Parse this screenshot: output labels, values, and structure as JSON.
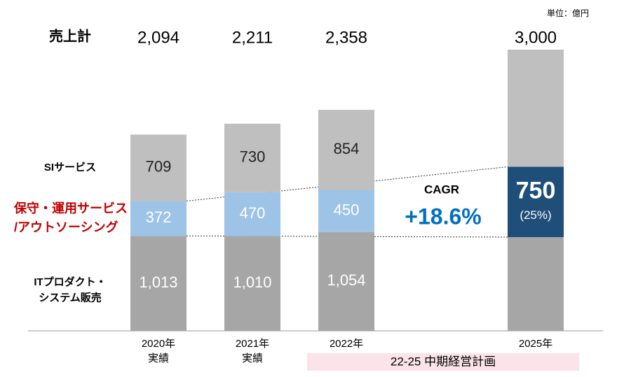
{
  "chart_data": {
    "type": "stacked_bar",
    "unit": "単位：億円",
    "total_title": "売上計",
    "categories": [
      "2020年",
      "2021年",
      "2022年",
      "2025年"
    ],
    "category_notes": [
      "実績",
      "実績",
      null,
      null
    ],
    "totals": [
      2094,
      2211,
      2358,
      3000
    ],
    "total_labels": [
      "2,094",
      "2,211",
      "2,358",
      "3,000"
    ],
    "series": [
      {
        "name": "ITプロダクト・\nシステム販売",
        "color": "#a6a6a6",
        "label_color": "#000000",
        "values": [
          1013,
          1010,
          1054,
          1000
        ],
        "value_labels": [
          "1,013",
          "1,010",
          "1,054",
          null
        ]
      },
      {
        "name": "保守・運用サービス\n/アウトソーシング",
        "colors": [
          "#9dc3e6",
          "#9dc3e6",
          "#9dc3e6",
          "#1f4e79"
        ],
        "label_color": "#c00000",
        "values": [
          372,
          470,
          450,
          750
        ],
        "value_labels": [
          "372",
          "470",
          "450",
          "750"
        ],
        "share_labels": [
          null,
          null,
          null,
          "(25%)"
        ]
      },
      {
        "name": "SIサービス",
        "color": "#bfbfbf",
        "label_color": "#000000",
        "values": [
          709,
          730,
          854,
          1250
        ],
        "value_labels": [
          "709",
          "730",
          "854",
          null
        ]
      }
    ],
    "cagr": {
      "label": "CAGR",
      "value": 18.6,
      "value_label": "+18.6%",
      "color": "#0070c0"
    },
    "plan_label": "22-25 中期経営計画",
    "ylim": [
      0,
      3000
    ]
  }
}
